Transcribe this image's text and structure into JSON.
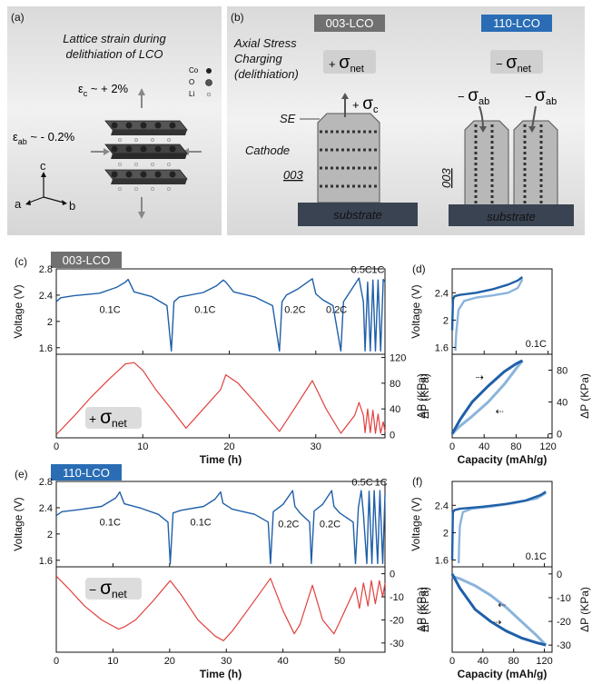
{
  "panel_a": {
    "letter": "(a)",
    "title_line1": "Lattice strain during",
    "title_line2": "delithiation of LCO",
    "eps_c_symbol": "ε",
    "eps_c_sub": "c",
    "eps_c_value": " ~ + 2%",
    "eps_ab_symbol": "ε",
    "eps_ab_sub": "ab",
    "eps_ab_value": " ~ - 0.2%",
    "legend": [
      "Co",
      "O",
      "Li"
    ],
    "axes": [
      "c",
      "a",
      "b"
    ]
  },
  "panel_b": {
    "letter": "(b)",
    "badge_003": "003-LCO",
    "badge_110": "110-LCO",
    "axial_line1": "Axial Stress",
    "axial_line2": "Charging",
    "axial_line3": "(delithiation)",
    "plus_sign": "+ ",
    "minus_sign": "− ",
    "sigma": "σ",
    "net_sub": "net",
    "sigma_c_plus": "+ ",
    "c_sub": "c",
    "ab_minus": "− ",
    "ab_sub": "ab",
    "se_label": "SE",
    "cathode_label": "Cathode",
    "orient_003": "003",
    "substrate_label": "substrate"
  },
  "colors": {
    "voltage_blue": "#1f5fa8",
    "voltage_light": "#8ab4dc",
    "pressure_red": "#e0413f",
    "badge_grey": "#707070",
    "badge_blue": "#2a6db5",
    "substrate": "#3a4352"
  },
  "chart_data": [
    {
      "panel": "(c)",
      "badge": "003-LCO",
      "type": "line",
      "xlabel": "Time (h)",
      "xlim": [
        0,
        38
      ],
      "xticks": [
        0,
        10,
        20,
        30
      ],
      "top": {
        "ylabel": "Voltage (V)",
        "ylim": [
          1.5,
          2.8
        ],
        "yticks": [
          1.6,
          2.0,
          2.4,
          2.8
        ],
        "series": [
          {
            "name": "Voltage",
            "x": [
              0,
              0.5,
              2,
              5,
              7,
              8,
              8.3,
              9,
              11,
              12.8,
              13.3,
              13.6,
              14.2,
              17,
              18.5,
              19.3,
              19.6,
              20.5,
              23,
              25,
              25.8,
              26.1,
              26.6,
              28,
              29.6,
              30,
              30.8,
              32,
              32.9,
              33.2,
              33.8,
              35,
              35.5,
              35.7,
              36,
              36.3,
              36.6,
              36.9,
              37.2,
              37.5,
              37.8,
              38
            ]
          },
          {
            "y": [
              2.3,
              2.36,
              2.39,
              2.43,
              2.52,
              2.6,
              2.64,
              2.45,
              2.38,
              2.24,
              1.55,
              2.3,
              2.37,
              2.44,
              2.54,
              2.63,
              2.6,
              2.45,
              2.37,
              2.24,
              1.55,
              2.3,
              2.4,
              2.5,
              2.65,
              2.42,
              2.33,
              2.24,
              1.55,
              2.3,
              2.42,
              2.66,
              2.3,
              1.55,
              2.6,
              1.55,
              2.63,
              1.55,
              2.63,
              1.55,
              2.64,
              2.6
            ]
          }
        ],
        "labels": [
          {
            "text": "0.1C",
            "x": 6.2,
            "y": 2.13
          },
          {
            "text": "0.1C",
            "x": 17.2,
            "y": 2.13
          },
          {
            "text": "0.2C",
            "x": 27.6,
            "y": 2.13
          },
          {
            "text": "0.2C",
            "x": 32.4,
            "y": 2.13
          },
          {
            "text": "0.5C",
            "x": 35.3,
            "y": 2.74
          },
          {
            "text": "1C",
            "x": 37.2,
            "y": 2.74
          }
        ]
      },
      "bottom": {
        "ylabel": "ΔP (KPa)",
        "ylim": [
          -5,
          125
        ],
        "yticks": [
          0,
          40,
          80,
          120
        ],
        "series": [
          {
            "name": "ΔP",
            "x": [
              0,
              2,
              4,
              6,
              8,
              9,
              10,
              11.5,
              13.3,
              15,
              17,
              19,
              19.6,
              21,
              23,
              25.8,
              27.5,
              29.6,
              31.2,
              32.9,
              34.5,
              35.0,
              35.5,
              35.7,
              36.0,
              36.3,
              36.6,
              36.9,
              37.2,
              37.5,
              37.8,
              38
            ]
          },
          {
            "y": [
              0,
              28,
              58,
              85,
              110,
              112,
              100,
              70,
              40,
              10,
              40,
              70,
              93,
              80,
              50,
              5,
              40,
              84,
              40,
              2,
              30,
              50,
              30,
              3,
              40,
              3,
              38,
              2,
              32,
              2,
              20,
              5
            ]
          }
        ],
        "annotation": {
          "plus": "+ ",
          "sigma": "σ",
          "sub": "net"
        }
      }
    },
    {
      "panel": "(d)",
      "type": "line",
      "xlabel": "Capacity (mAh/g)",
      "xlim": [
        0,
        125
      ],
      "xticks": [
        0,
        40,
        80,
        120
      ],
      "top": {
        "ylabel": "Voltage (V)",
        "ylim": [
          1.5,
          2.75
        ],
        "yticks": [
          1.6,
          2.0,
          2.4
        ],
        "rate_label": "0.1C",
        "charge": {
          "x": [
            0,
            1,
            3,
            10,
            30,
            50,
            70,
            82,
            88
          ],
          "y": [
            1.85,
            2.3,
            2.35,
            2.37,
            2.4,
            2.45,
            2.52,
            2.58,
            2.63
          ]
        },
        "discharge": {
          "x": [
            88,
            82,
            70,
            50,
            30,
            15,
            8,
            5,
            4
          ],
          "y": [
            2.6,
            2.47,
            2.4,
            2.36,
            2.33,
            2.28,
            2.15,
            1.8,
            1.55
          ]
        }
      },
      "bottom": {
        "ylabel": "ΔP (KPa)",
        "ylim": [
          -5,
          100
        ],
        "yticks": [
          0,
          40,
          80
        ],
        "charge": {
          "x": [
            0,
            10,
            25,
            45,
            65,
            80,
            88
          ],
          "y": [
            0,
            18,
            40,
            60,
            78,
            88,
            92
          ]
        },
        "discharge": {
          "x": [
            88,
            80,
            65,
            45,
            25,
            10,
            0
          ],
          "y": [
            92,
            82,
            62,
            40,
            22,
            10,
            0
          ]
        }
      }
    },
    {
      "panel": "(e)",
      "badge": "110-LCO",
      "type": "line",
      "xlabel": "Time (h)",
      "xlim": [
        0,
        58
      ],
      "xticks": [
        0,
        10,
        20,
        30,
        40,
        50
      ],
      "top": {
        "ylabel": "Voltage (V)",
        "ylim": [
          1.5,
          2.8
        ],
        "yticks": [
          1.6,
          2.0,
          2.4,
          2.8
        ],
        "series": [
          {
            "name": "Voltage",
            "x": [
              0,
              1,
              4,
              8,
              10.5,
              11.2,
              12,
              15,
              18,
              19.7,
              20.1,
              20.6,
              22,
              26,
              28,
              29,
              29.4,
              31,
              35,
              37.4,
              37.8,
              38.3,
              40,
              41.7,
              42.1,
              43,
              44.7,
              45,
              45.5,
              47,
              48.6,
              49,
              50,
              52.4,
              52.8,
              53.3,
              53.8,
              54.2,
              54.8,
              55.2,
              55.7,
              56.1,
              56.7,
              57.1,
              57.6,
              58
            ]
          },
          {
            "y": [
              2.28,
              2.34,
              2.37,
              2.42,
              2.55,
              2.64,
              2.46,
              2.39,
              2.3,
              2.18,
              1.55,
              2.32,
              2.36,
              2.42,
              2.53,
              2.64,
              2.47,
              2.38,
              2.3,
              2.18,
              1.55,
              2.34,
              2.45,
              2.66,
              2.42,
              2.32,
              2.18,
              1.55,
              2.35,
              2.45,
              2.66,
              2.42,
              2.32,
              2.18,
              1.55,
              2.4,
              2.66,
              2.3,
              1.55,
              2.65,
              1.55,
              2.66,
              1.55,
              2.66,
              1.55,
              2.6
            ]
          }
        ],
        "labels": [
          {
            "text": "0.1C",
            "x": 9.5,
            "y": 2.13
          },
          {
            "text": "0.1C",
            "x": 25.5,
            "y": 2.13
          },
          {
            "text": "0.2C",
            "x": 41.0,
            "y": 2.1
          },
          {
            "text": "0.2C",
            "x": 48.3,
            "y": 2.1
          },
          {
            "text": "0.5C",
            "x": 54.0,
            "y": 2.74
          },
          {
            "text": "1C",
            "x": 57.3,
            "y": 2.74
          }
        ]
      },
      "bottom": {
        "ylabel": "ΔP (KPa)",
        "ylim": [
          -34,
          3
        ],
        "yticks": [
          0,
          -10,
          -20,
          -30
        ],
        "series": [
          {
            "name": "ΔP",
            "x": [
              0,
              2,
              5,
              8,
              11,
              12,
              14,
              17,
              20.1,
              22,
              25,
              28,
              29.5,
              31,
              34,
              37.8,
              40,
              42,
              43,
              45.2,
              47,
              49,
              49.8,
              52.8,
              53.5,
              54.2,
              55,
              55.6,
              56.3,
              57,
              57.6,
              58
            ]
          },
          {
            "y": [
              -1,
              -6,
              -14,
              -20,
              -24,
              -23,
              -20,
              -12,
              -3,
              -9,
              -20,
              -27,
              -29,
              -25,
              -15,
              -2,
              -16,
              -26,
              -22,
              -5,
              -20,
              -26,
              -22,
              -6,
              -15,
              -4,
              -14,
              -3,
              -13,
              -3,
              -10,
              -4
            ]
          }
        ],
        "annotation": {
          "minus": "− ",
          "sigma": "σ",
          "sub": "net"
        }
      }
    },
    {
      "panel": "(f)",
      "type": "line",
      "xlabel": "Capacity (mAh/g)",
      "xlim": [
        0,
        130
      ],
      "xticks": [
        0,
        40,
        80,
        120
      ],
      "top": {
        "ylabel": "Voltage (V)",
        "ylim": [
          1.5,
          2.75
        ],
        "yticks": [
          1.6,
          2.0,
          2.4
        ],
        "rate_label": "0.1C",
        "charge": {
          "x": [
            0,
            1,
            3,
            10,
            40,
            70,
            95,
            115,
            122
          ],
          "y": [
            1.6,
            2.3,
            2.33,
            2.35,
            2.38,
            2.42,
            2.47,
            2.55,
            2.6
          ]
        },
        "discharge": {
          "x": [
            122,
            110,
            80,
            50,
            25,
            14,
            10,
            9,
            8.5
          ],
          "y": [
            2.58,
            2.5,
            2.43,
            2.38,
            2.35,
            2.3,
            2.1,
            1.8,
            1.55
          ]
        }
      },
      "bottom": {
        "ylabel": "ΔP (KPa)",
        "ylim": [
          -33,
          3
        ],
        "yticks": [
          0,
          -10,
          -20,
          -30
        ],
        "charge": {
          "x": [
            0,
            10,
            30,
            50,
            70,
            90,
            110,
            122
          ],
          "y": [
            0,
            -6,
            -15,
            -20,
            -24,
            -27,
            -29,
            -30
          ]
        },
        "discharge": {
          "x": [
            122,
            110,
            90,
            70,
            50,
            30,
            10,
            0
          ],
          "y": [
            -30,
            -26,
            -20,
            -14,
            -9,
            -5,
            -2,
            -1
          ]
        }
      }
    }
  ]
}
